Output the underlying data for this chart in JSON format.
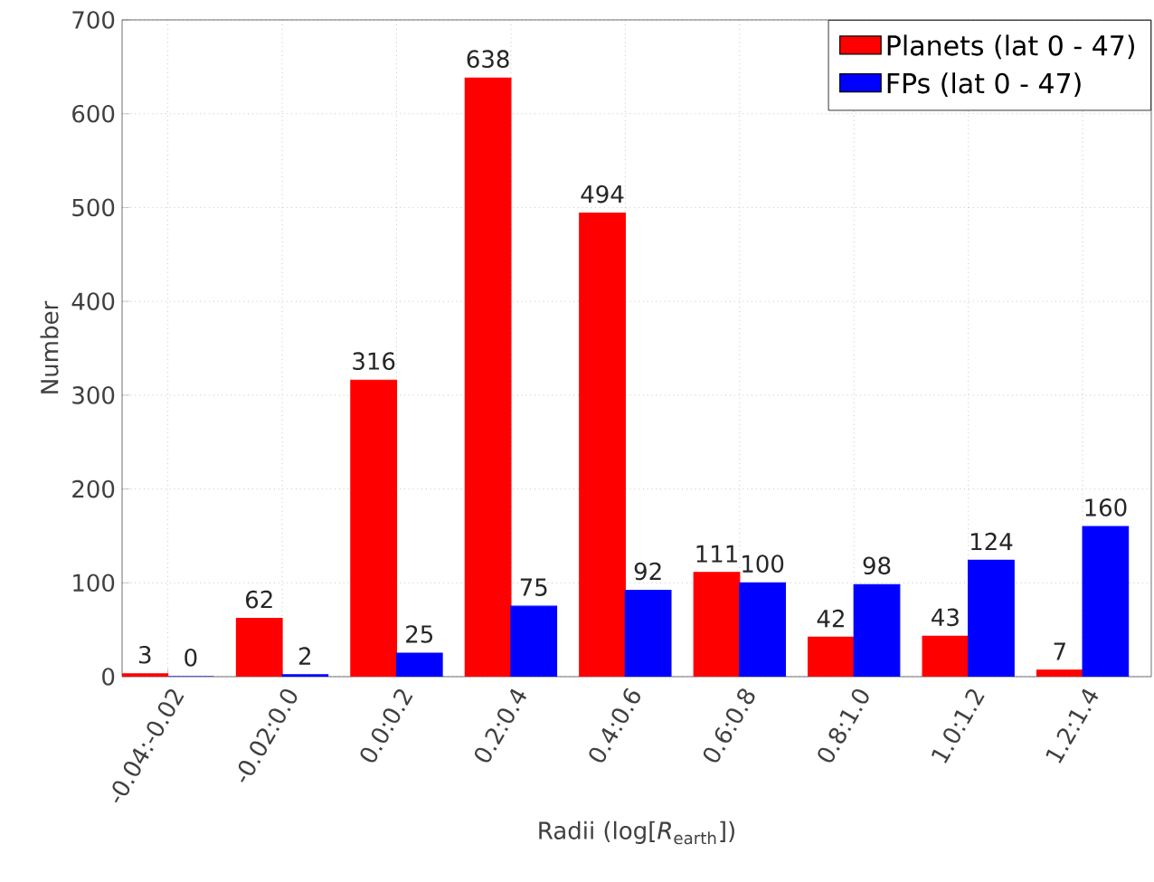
{
  "chart_data": {
    "type": "bar",
    "xlabel": "Radii (log[*R*$_{earth}$])",
    "ylabel": "Number",
    "categories": [
      "-0.04:-0.02",
      "-0.02:0.0",
      "0.0:0.2",
      "0.2:0.4",
      "0.4:0.6",
      "0.6:0.8",
      "0.8:1.0",
      "1.0:1.2",
      "1.2:1.4"
    ],
    "series": [
      {
        "name": "Planets (lat 0 - 47)",
        "color": "#ff0000",
        "values": [
          3,
          62,
          316,
          638,
          494,
          111,
          42,
          43,
          7
        ]
      },
      {
        "name": "FPs (lat 0 - 47)",
        "color": "#0000ff",
        "values": [
          0,
          2,
          25,
          75,
          92,
          100,
          98,
          124,
          160
        ]
      }
    ],
    "ylim": [
      0,
      700
    ],
    "yticks": [
      0,
      100,
      200,
      300,
      400,
      500,
      600,
      700
    ],
    "grid": true,
    "legend": "top right",
    "data_labels": true
  }
}
